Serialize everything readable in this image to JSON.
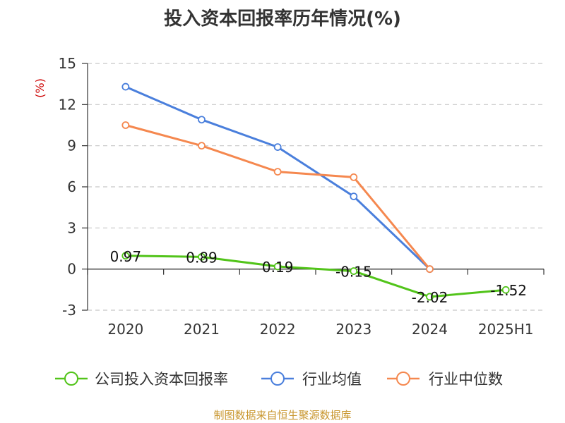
{
  "chart_data": {
    "type": "line",
    "title": "投入资本回报率历年情况(%)",
    "ylabel": "(%)",
    "xlabel": "",
    "categories": [
      "2020",
      "2021",
      "2022",
      "2023",
      "2024",
      "2025H1"
    ],
    "ylim": [
      -3,
      15
    ],
    "yticks": [
      -3,
      0,
      3,
      6,
      9,
      12,
      15
    ],
    "grid": true,
    "legend_position": "bottom",
    "series": [
      {
        "name": "公司投入资本回报率",
        "color": "#52c41a",
        "values": [
          0.97,
          0.89,
          0.19,
          -0.15,
          -2.02,
          -1.52
        ],
        "show_labels": true
      },
      {
        "name": "行业均值",
        "color": "#4a7fdc",
        "values": [
          13.3,
          10.9,
          8.9,
          5.3,
          0.0,
          null
        ],
        "show_labels": false
      },
      {
        "name": "行业中位数",
        "color": "#f5884f",
        "values": [
          10.5,
          9.0,
          7.1,
          6.7,
          0.0,
          null
        ],
        "show_labels": false
      }
    ],
    "data_labels": [
      "0.97",
      "0.89",
      "0.19",
      "-0.15",
      "-2.02",
      "-1.52"
    ]
  },
  "source": "制图数据来自恒生聚源数据库"
}
